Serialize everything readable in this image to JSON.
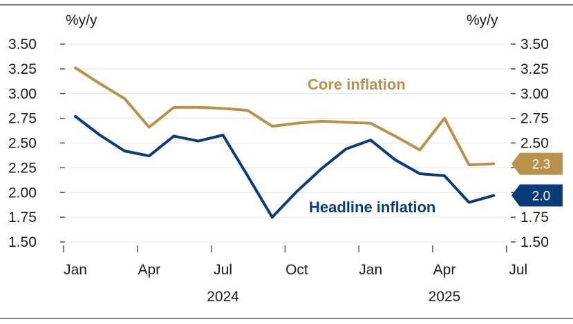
{
  "chart_data": {
    "type": "line",
    "left_unit": "%y/y",
    "right_unit": "%y/y",
    "y_ticks": [
      "3.50",
      "3.25",
      "3.00",
      "2.75",
      "2.50",
      "2.25",
      "2.00",
      "1.75",
      "1.50"
    ],
    "ylim": [
      1.5,
      3.5
    ],
    "x_ticks": [
      {
        "label": "Jan",
        "month": 0
      },
      {
        "label": "Apr",
        "month": 3
      },
      {
        "label": "Jul",
        "month": 6
      },
      {
        "label": "Oct",
        "month": 9
      },
      {
        "label": "Jan",
        "month": 12
      },
      {
        "label": "Apr",
        "month": 15
      },
      {
        "label": "Jul",
        "month": 18
      }
    ],
    "year_labels": [
      {
        "label": "2024",
        "month": 6
      },
      {
        "label": "2025",
        "month": 15
      }
    ],
    "x": [
      "2024-01",
      "2024-02",
      "2024-03",
      "2024-04",
      "2024-05",
      "2024-06",
      "2024-07",
      "2024-08",
      "2024-09",
      "2024-10",
      "2024-11",
      "2024-12",
      "2025-01",
      "2025-02",
      "2025-03",
      "2025-04",
      "2025-05",
      "2025-06"
    ],
    "series": [
      {
        "name": "Core inflation",
        "color": "#b8914a",
        "values": [
          3.26,
          3.1,
          2.95,
          2.66,
          2.86,
          2.86,
          2.85,
          2.83,
          2.67,
          2.7,
          2.72,
          2.71,
          2.7,
          2.57,
          2.43,
          2.75,
          2.28,
          2.29
        ],
        "end_label": "2.3"
      },
      {
        "name": "Headline inflation",
        "color": "#0b3a7a",
        "values": [
          2.77,
          2.58,
          2.42,
          2.37,
          2.57,
          2.52,
          2.58,
          2.17,
          1.75,
          2.01,
          2.24,
          2.44,
          2.53,
          2.33,
          2.19,
          2.17,
          1.9,
          1.97
        ],
        "end_label": "2.0"
      }
    ],
    "grid": true
  }
}
